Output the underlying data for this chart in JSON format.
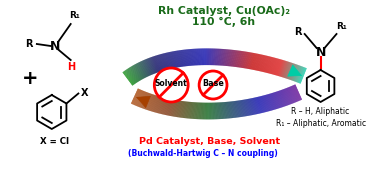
{
  "bg_color": "#ffffff",
  "title_line1": "Rh Catalyst, Cu(OAc)₂",
  "title_line2": "110 °C, 6h",
  "title_color": "#1a6b1a",
  "bottom_label": "Pd Catalyst, Base, Solvent",
  "bottom_label_color": "#ff0000",
  "buchwald_label": "(Buchwald-Hartwig C – N coupling)",
  "buchwald_color": "#0000ff",
  "no_solvent_text": "Solvent",
  "no_base_text": "Base",
  "product_r": "R – H, Aliphatic",
  "product_r1": "R₁ – Aliphatic, Aromatic",
  "x_eq": "X = Cl",
  "arrow_top_colors": [
    [
      0.0,
      [
        0.05,
        0.55,
        0.05
      ]
    ],
    [
      0.18,
      [
        0.0,
        0.0,
        0.35
      ]
    ],
    [
      0.45,
      [
        0.0,
        0.0,
        0.65
      ]
    ],
    [
      0.7,
      [
        0.75,
        0.0,
        0.0
      ]
    ],
    [
      0.85,
      [
        0.85,
        0.05,
        0.05
      ]
    ],
    [
      1.0,
      [
        0.0,
        0.8,
        0.65
      ]
    ]
  ],
  "arrow_bot_colors": [
    [
      0.0,
      [
        0.35,
        0.0,
        0.55
      ]
    ],
    [
      0.25,
      [
        0.0,
        0.0,
        0.65
      ]
    ],
    [
      0.55,
      [
        0.0,
        0.35,
        0.05
      ]
    ],
    [
      0.78,
      [
        0.45,
        0.15,
        0.0
      ]
    ],
    [
      1.0,
      [
        0.65,
        0.25,
        0.0
      ]
    ]
  ]
}
